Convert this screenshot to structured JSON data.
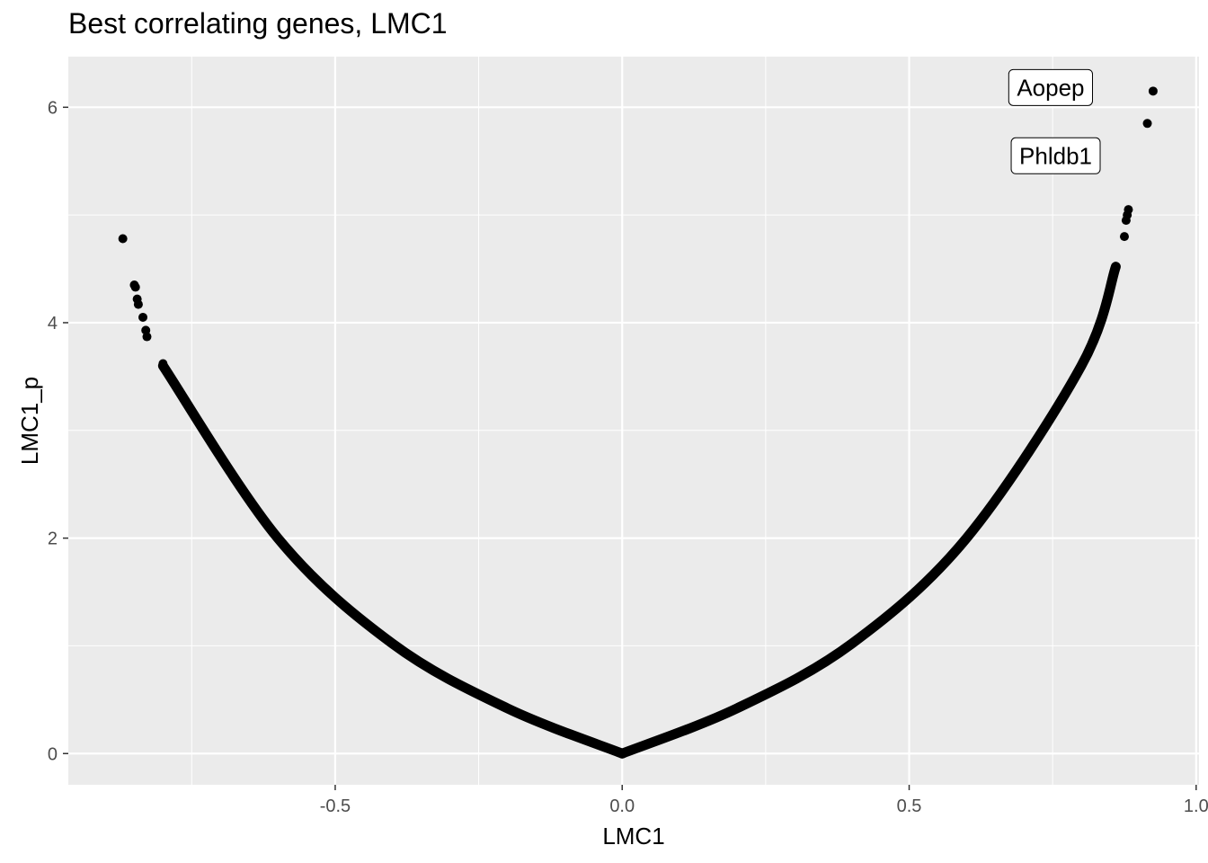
{
  "chart_data": {
    "type": "scatter",
    "title": "Best correlating genes, LMC1",
    "xlabel": "LMC1",
    "ylabel": "LMC1_p",
    "xlim": [
      -0.965,
      1.005
    ],
    "ylim": [
      -0.29,
      6.47
    ],
    "x_ticks": [
      -0.5,
      0.0,
      0.5,
      1.0
    ],
    "x_tick_labels": [
      "-0.5",
      "0.0",
      "0.5",
      "1.0"
    ],
    "y_ticks": [
      0,
      2,
      4,
      6
    ],
    "y_tick_labels": [
      "0",
      "2",
      "4",
      "6"
    ],
    "grid": true,
    "legend": "none",
    "colors": {
      "panel": "#ebebeb",
      "grid": "#ffffff",
      "point": "#000000",
      "tick_text": "#4d4d4d"
    },
    "points": [
      {
        "x": -0.87,
        "y": 4.78
      },
      {
        "x": -0.85,
        "y": 4.35
      },
      {
        "x": -0.848,
        "y": 4.33
      },
      {
        "x": -0.845,
        "y": 4.22
      },
      {
        "x": -0.843,
        "y": 4.17
      },
      {
        "x": -0.835,
        "y": 4.05
      },
      {
        "x": -0.83,
        "y": 3.93
      },
      {
        "x": -0.828,
        "y": 3.87
      },
      {
        "x": -0.8,
        "y": 3.62
      },
      {
        "x": 0.875,
        "y": 4.8
      },
      {
        "x": 0.878,
        "y": 4.95
      },
      {
        "x": 0.88,
        "y": 5.0
      },
      {
        "x": 0.882,
        "y": 5.05
      },
      {
        "x": 0.915,
        "y": 5.85
      },
      {
        "x": 0.925,
        "y": 6.15
      }
    ],
    "curve": {
      "description_points": [
        {
          "x": -0.8,
          "y": 3.6
        },
        {
          "x": -0.6,
          "y": 2.0
        },
        {
          "x": -0.4,
          "y": 1.02
        },
        {
          "x": -0.2,
          "y": 0.42
        },
        {
          "x": 0.0,
          "y": 0.0
        },
        {
          "x": 0.2,
          "y": 0.42
        },
        {
          "x": 0.4,
          "y": 1.02
        },
        {
          "x": 0.6,
          "y": 2.0
        },
        {
          "x": 0.8,
          "y": 3.6
        },
        {
          "x": 0.86,
          "y": 4.52
        }
      ]
    },
    "annotations": [
      {
        "label": "Aopep",
        "x": 0.925,
        "y": 6.15
      },
      {
        "label": "Phldb1",
        "x": 0.915,
        "y": 5.85
      }
    ]
  }
}
